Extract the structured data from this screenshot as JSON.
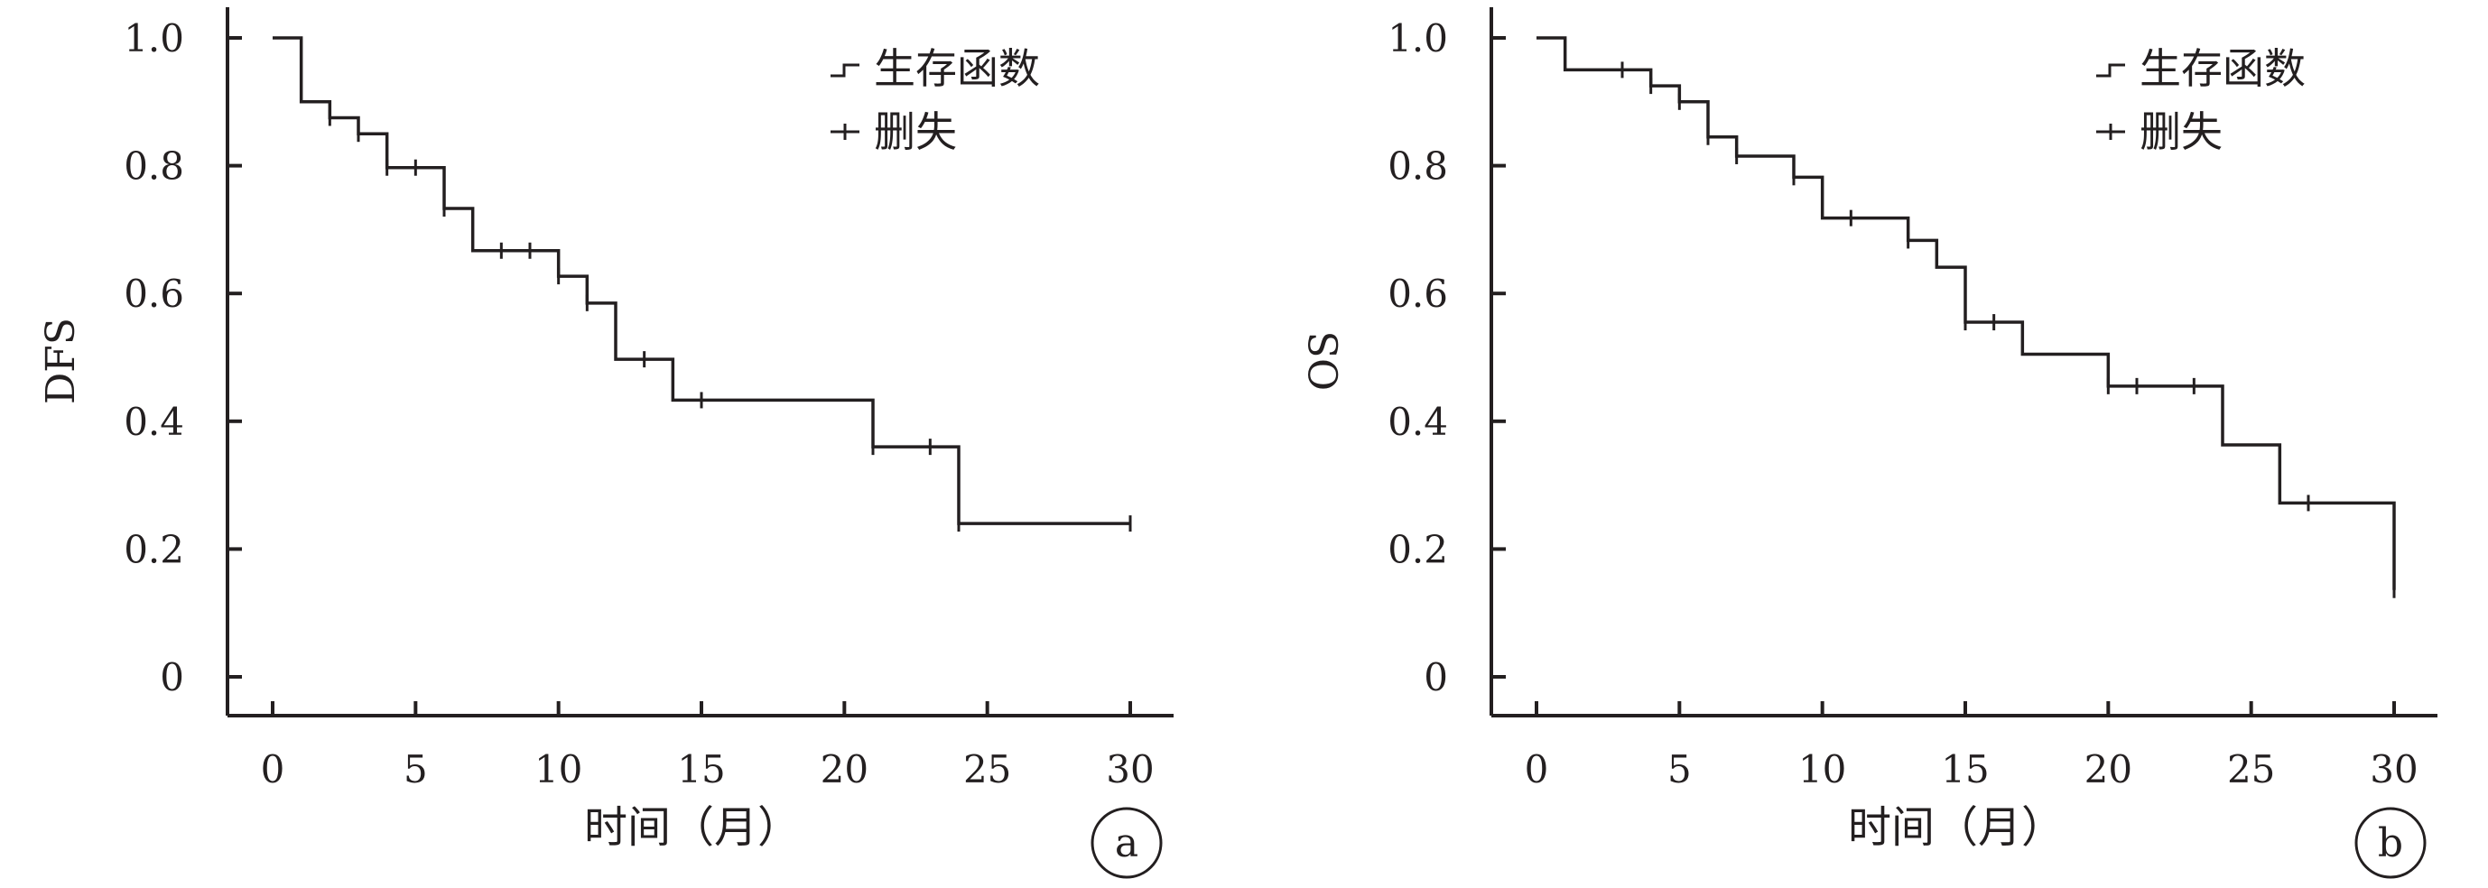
{
  "chart_data": [
    {
      "type": "line",
      "step": true,
      "panel_label": "a",
      "ylabel": "DFS",
      "xlabel": "时间（月）",
      "xlim": [
        0,
        30
      ],
      "ylim": [
        0,
        1.0
      ],
      "x_ticks": [
        0,
        5,
        10,
        15,
        20,
        25,
        30
      ],
      "x_tick_labels": [
        "0",
        "5",
        "10",
        "15",
        "20",
        "25",
        "30"
      ],
      "y_ticks": [
        0,
        0.2,
        0.4,
        0.6,
        0.8,
        1.0
      ],
      "y_tick_labels": [
        "0",
        "0.2",
        "0.4",
        "0.6",
        "0.8",
        "1.0"
      ],
      "grid": false,
      "legend": {
        "position": "top-right",
        "entries": [
          "生存函数",
          "删失"
        ]
      },
      "series": [
        {
          "name": "生存函数",
          "x": [
            0,
            1,
            2,
            3,
            4,
            6,
            7,
            10,
            11,
            12,
            14,
            21,
            24,
            30
          ],
          "y": [
            1.0,
            0.9,
            0.875,
            0.85,
            0.797,
            0.733,
            0.667,
            0.627,
            0.585,
            0.497,
            0.433,
            0.36,
            0.24,
            0.24
          ]
        },
        {
          "name": "删失",
          "x": [
            2,
            3,
            4,
            5,
            6,
            8,
            9,
            10,
            11,
            13,
            15,
            21,
            23,
            24,
            30
          ],
          "y": [
            0.875,
            0.85,
            0.797,
            0.797,
            0.733,
            0.667,
            0.667,
            0.627,
            0.585,
            0.497,
            0.433,
            0.36,
            0.36,
            0.24,
            0.24
          ]
        }
      ]
    },
    {
      "type": "line",
      "step": true,
      "panel_label": "b",
      "ylabel": "OS",
      "xlabel": "时间（月）",
      "xlim": [
        0,
        30
      ],
      "ylim": [
        0,
        1.0
      ],
      "x_ticks": [
        0,
        5,
        10,
        15,
        20,
        25,
        30
      ],
      "x_tick_labels": [
        "0",
        "5",
        "10",
        "15",
        "20",
        "25",
        "30"
      ],
      "y_ticks": [
        0,
        0.2,
        0.4,
        0.6,
        0.8,
        1.0
      ],
      "y_tick_labels": [
        "0",
        "0.2",
        "0.4",
        "0.6",
        "0.8",
        "1.0"
      ],
      "grid": false,
      "legend": {
        "position": "top-right",
        "entries": [
          "生存函数",
          "删失"
        ]
      },
      "series": [
        {
          "name": "生存函数",
          "x": [
            0,
            1,
            4,
            5,
            6,
            7,
            9,
            10,
            13,
            14,
            15,
            17,
            20,
            24,
            26,
            30
          ],
          "y": [
            1.0,
            0.95,
            0.925,
            0.9,
            0.845,
            0.815,
            0.782,
            0.718,
            0.683,
            0.641,
            0.555,
            0.505,
            0.455,
            0.363,
            0.272,
            0.136
          ]
        },
        {
          "name": "删失",
          "x": [
            3,
            4,
            5,
            6,
            7,
            9,
            11,
            13,
            15,
            16,
            20,
            21,
            23,
            27,
            30
          ],
          "y": [
            0.95,
            0.925,
            0.9,
            0.845,
            0.815,
            0.782,
            0.718,
            0.683,
            0.555,
            0.555,
            0.455,
            0.455,
            0.455,
            0.272,
            0.136
          ]
        }
      ]
    }
  ]
}
